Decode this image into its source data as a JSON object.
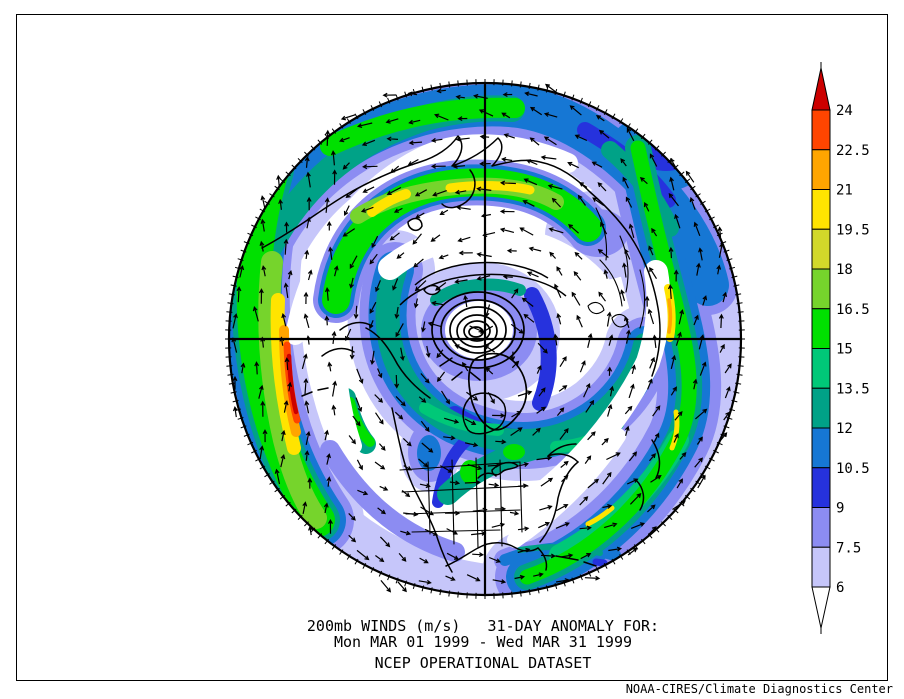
{
  "titles": {
    "line1": "200mb WINDS (m/s)   31-DAY ANOMALY FOR:",
    "line2": "Mon MAR 01 1999 - Wed MAR 31 1999",
    "line3": "NCEP OPERATIONAL DATASET"
  },
  "attribution": "NOAA-CIRES/Climate Diagnostics Center",
  "colorbar": {
    "units": "m/s",
    "labels_top_to_bottom": [
      "24",
      "22.5",
      "21",
      "19.5",
      "18",
      "16.5",
      "15",
      "13.5",
      "12",
      "10.5",
      "9",
      "7.5",
      "6"
    ],
    "colors_top_to_bottom": [
      "#cc0000",
      "#ff4500",
      "#ffa500",
      "#ffe400",
      "#d2d82a",
      "#76d42c",
      "#00e000",
      "#00c878",
      "#00a287",
      "#1677d4",
      "#2632dd",
      "#8c8cf2",
      "#c6c6fa",
      "#ffffff"
    ]
  },
  "chart_data": {
    "type": "heatmap",
    "title": "200mb WINDS (m/s)   31-DAY ANOMALY FOR:",
    "subtitle": "Mon MAR 01 1999 - Wed MAR 31 1999",
    "dataset": "NCEP OPERATIONAL DATASET",
    "source": "NOAA-CIRES/Climate Diagnostics Center",
    "variable": "200 mb wind speed 31-day anomaly",
    "units": "m/s",
    "projection": "Northern Hemisphere polar stereographic, pole-centered circular map with lat/lon crosshair",
    "overlay": "wind anomaly vector arrows and coastlines",
    "contour_interval": 1.5,
    "levels": [
      6,
      7.5,
      9,
      10.5,
      12,
      13.5,
      15,
      16.5,
      18,
      19.5,
      21,
      22.5,
      24
    ],
    "level_colors_low_to_high": [
      "#c6c6fa",
      "#8c8cf2",
      "#2632dd",
      "#1677d4",
      "#00a287",
      "#00c878",
      "#00e000",
      "#76d42c",
      "#d2d82a",
      "#ffe400",
      "#ffa500",
      "#ff4500",
      "#cc0000"
    ],
    "legend_position": "right",
    "notable_features": [
      "Primary anomaly maximum exceeding 24 m/s (dark red core) in the mid-left North Pacific sector",
      "Secondary maxima ~19-21 m/s in vertical band along right East Asia sector and yellow cores in upper band",
      "Closed cyclonic circulation center with tight black contour rings just left of the pole crosshair",
      "Spiral bands of 9-18 m/s anomalies (blue-teal-green) wrapping the hemisphere",
      "Mostly white (< 6 m/s) over central North America at bottom of map"
    ]
  }
}
